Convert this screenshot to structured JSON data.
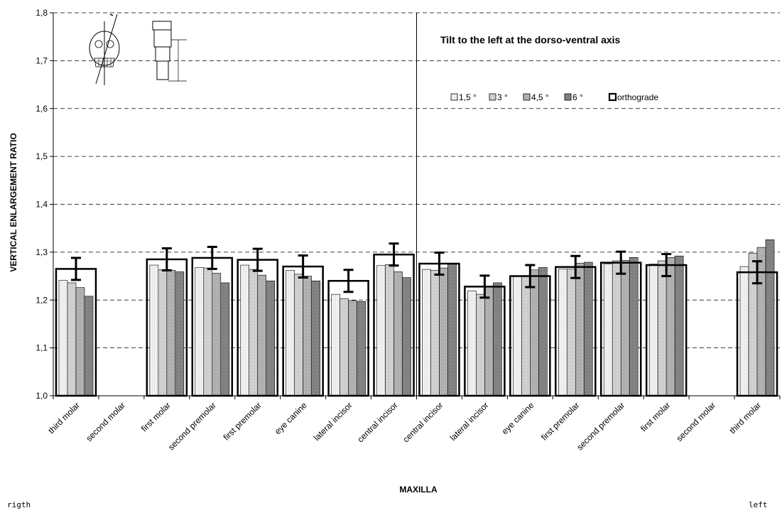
{
  "chart_data": {
    "type": "bar",
    "title": "Tilt to the left at the dorso-ventral axis",
    "xlabel": "MAXILLA",
    "ylabel": "VERTICAL ENLARGEMENT RATIO",
    "ylim": [
      1.0,
      1.8
    ],
    "yticks": [
      "1,0",
      "1,1",
      "1,2",
      "1,3",
      "1,4",
      "1,5",
      "1,6",
      "1,7",
      "1,8"
    ],
    "grid": true,
    "legend_position": "top-right",
    "left_side_label": "rigth",
    "right_side_label": "left",
    "categories": [
      "third molar",
      "second molar",
      "first molar",
      "second premolar",
      "first premolar",
      "eye canine",
      "lateral incisor",
      "central incisor",
      "central incisor",
      "lateral incisor",
      "eye canine",
      "first premolar",
      "second premolar",
      "first molar",
      "second molar",
      "third molar"
    ],
    "series": [
      {
        "name": "1,5 °",
        "color": "#eeeeee",
        "values": [
          1.241,
          null,
          1.273,
          1.268,
          1.273,
          1.262,
          1.212,
          1.272,
          1.264,
          1.219,
          1.249,
          1.265,
          1.275,
          1.275,
          null,
          1.27
        ]
      },
      {
        "name": "3 °",
        "color": "#d4d4d4",
        "values": [
          1.236,
          null,
          1.263,
          1.267,
          1.264,
          1.254,
          1.203,
          1.274,
          1.262,
          1.212,
          1.251,
          1.265,
          1.282,
          1.282,
          null,
          1.298
        ]
      },
      {
        "name": "4,5 °",
        "color": "#b8b8b8",
        "values": [
          1.226,
          null,
          1.262,
          1.256,
          1.252,
          1.25,
          1.199,
          1.259,
          1.267,
          1.228,
          1.263,
          1.277,
          1.283,
          1.289,
          null,
          1.31
        ]
      },
      {
        "name": "6 °",
        "color": "#8a8a8a",
        "values": [
          1.208,
          null,
          1.259,
          1.236,
          1.24,
          1.24,
          1.197,
          1.247,
          1.276,
          1.236,
          1.268,
          1.279,
          1.289,
          1.292,
          null,
          1.326
        ]
      },
      {
        "name": "orthograde",
        "color": "#ffffff",
        "values": [
          1.265,
          null,
          1.285,
          1.288,
          1.284,
          1.27,
          1.24,
          1.295,
          1.276,
          1.228,
          1.25,
          1.269,
          1.278,
          1.273,
          null,
          1.258
        ],
        "error": [
          0.023,
          null,
          0.023,
          0.023,
          0.023,
          0.023,
          0.023,
          0.023,
          0.023,
          0.023,
          0.023,
          0.023,
          0.023,
          0.023,
          null,
          0.023
        ]
      }
    ]
  }
}
